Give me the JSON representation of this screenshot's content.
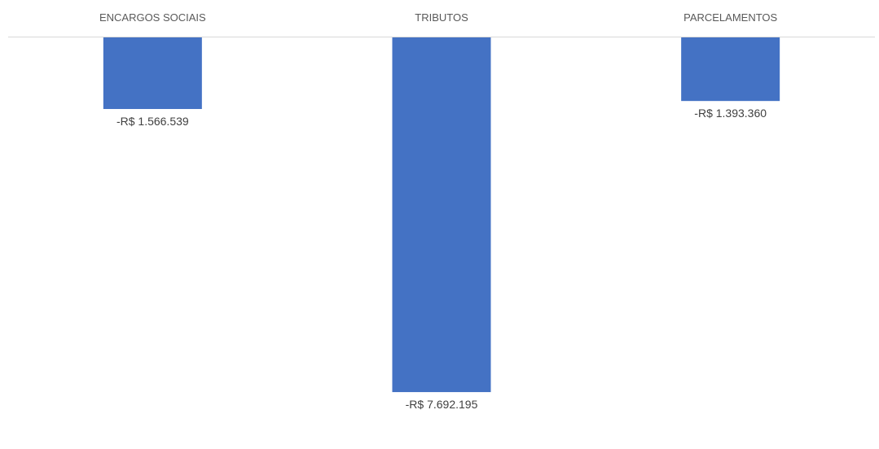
{
  "chart_data": {
    "type": "bar",
    "orientation": "vertical",
    "category_axis_position": "top",
    "categories": [
      "ENCARGOS SOCIAIS",
      "TRIBUTOS",
      "PARCELAMENTOS"
    ],
    "values": [
      -1566539,
      -7692195,
      -1393360
    ],
    "data_labels": [
      "-R$ 1.566.539",
      "-R$ 7.692.195",
      "-R$ 1.393.360"
    ],
    "title": "",
    "xlabel": "",
    "ylabel": "",
    "ylim": [
      -8800000,
      0
    ],
    "grid": false,
    "legend": "none",
    "bar_color": "#4472C4"
  }
}
